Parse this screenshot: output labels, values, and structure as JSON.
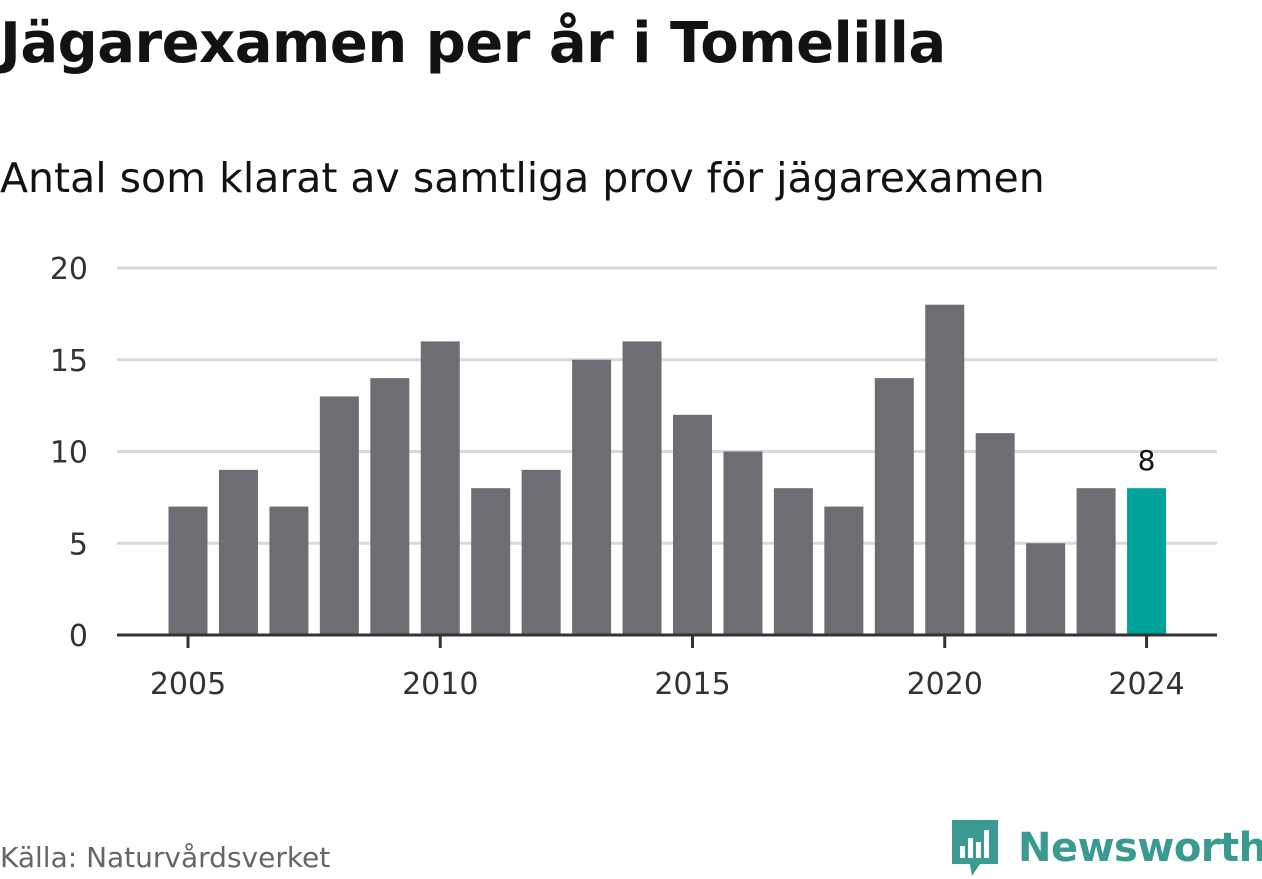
{
  "title": "Jägarexamen per år i Tomelilla",
  "subtitle": "Antal som klarat av samtliga prov för jägarexamen",
  "source": "Källa: Naturvårdsverket",
  "brand": {
    "name": "Newsworthy",
    "logo_icon": "newsworthy-logo-icon",
    "color": "#3a9a92"
  },
  "colors": {
    "bar": "#6e6d73",
    "highlight": "#00a39a",
    "grid": "#d9d9d9",
    "axis": "#333333",
    "tick_text": "#333333"
  },
  "chart_data": {
    "type": "bar",
    "title": "Jägarexamen per år i Tomelilla",
    "subtitle": "Antal som klarat av samtliga prov för jägarexamen",
    "x": [
      2005,
      2006,
      2007,
      2008,
      2009,
      2010,
      2011,
      2012,
      2013,
      2014,
      2015,
      2016,
      2017,
      2018,
      2019,
      2020,
      2021,
      2022,
      2023,
      2024
    ],
    "values": [
      7,
      9,
      7,
      13,
      14,
      16,
      8,
      9,
      15,
      16,
      12,
      10,
      8,
      7,
      14,
      18,
      11,
      5,
      8,
      8
    ],
    "highlight_x": 2024,
    "highlight_label": "8",
    "x_ticks": [
      "2005",
      "2010",
      "2015",
      "2020",
      "2024"
    ],
    "y_ticks": [
      "0",
      "5",
      "10",
      "15",
      "20"
    ],
    "ylim": [
      0,
      20
    ],
    "grid": true,
    "legend": "none"
  }
}
